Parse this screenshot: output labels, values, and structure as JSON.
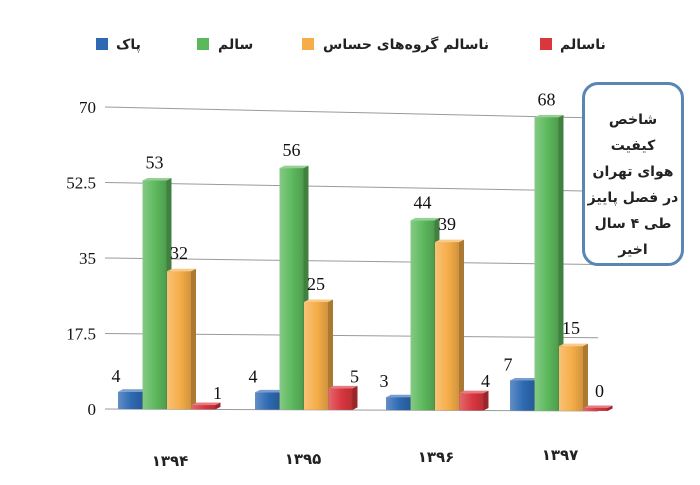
{
  "chart_data": {
    "type": "bar",
    "categories": [
      "۱۳۹۴",
      "۱۳۹۵",
      "۱۳۹۶",
      "۱۳۹۷"
    ],
    "series": [
      {
        "name": "پاک",
        "color": "#2e6ab3",
        "values": [
          4,
          4,
          3,
          7
        ]
      },
      {
        "name": "سالم",
        "color": "#5cb85c",
        "values": [
          53,
          56,
          44,
          68
        ]
      },
      {
        "name": "ناسالم گروه‌های حساس",
        "color": "#f5ad48",
        "values": [
          32,
          25,
          39,
          15
        ]
      },
      {
        "name": "ناسالم",
        "color": "#d9363e",
        "values": [
          1,
          5,
          4,
          0
        ]
      }
    ],
    "yticks": [
      "0",
      "17.5",
      "35",
      "52.5",
      "70"
    ],
    "ylim": [
      0,
      70
    ],
    "grid": true,
    "legend_position": "top",
    "note": "شاخص کیفیت\nهوای تهران\nدر فصل پاییز\nطی ۴ سال\nاخیر"
  }
}
